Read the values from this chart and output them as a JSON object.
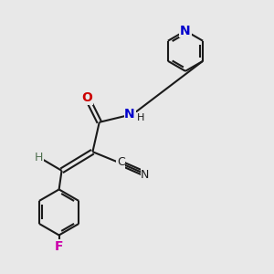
{
  "bg_color": "#e8e8e8",
  "bond_color": "#1a1a1a",
  "N_color": "#0000cc",
  "O_color": "#cc0000",
  "F_color": "#cc00aa",
  "line_width": 1.5,
  "figsize": [
    3.0,
    3.0
  ],
  "dpi": 100,
  "xlim": [
    0,
    10
  ],
  "ylim": [
    0,
    10
  ]
}
